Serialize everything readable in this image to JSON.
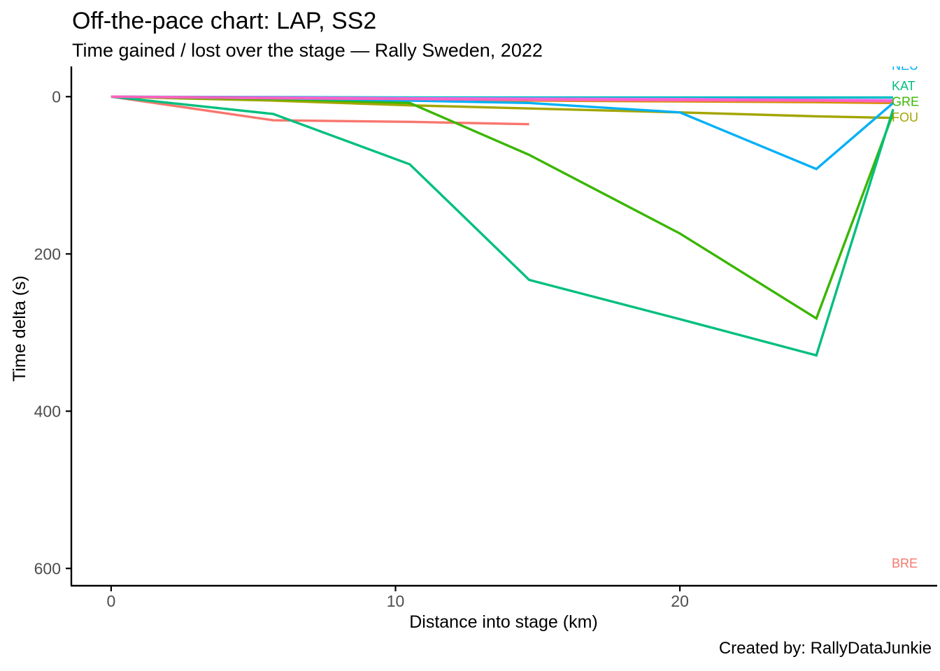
{
  "header": {
    "title": "Off-the-pace chart: LAP, SS2",
    "subtitle": "Time gained / lost over the stage — Rally Sweden, 2022"
  },
  "footer": {
    "credit": "Created by: RallyDataJunkie"
  },
  "chart_data": {
    "type": "line",
    "title": "Off-the-pace chart: LAP, SS2",
    "subtitle": "Time gained / lost over the stage — Rally Sweden, 2022",
    "xlabel": "Distance into stage (km)",
    "ylabel": "Time delta (s)",
    "x_ticks": [
      0,
      10,
      20
    ],
    "y_ticks": [
      0,
      200,
      400,
      600
    ],
    "xlim": [
      -1.4,
      29.0
    ],
    "ylim_seconds": [
      -38.5,
      622
    ],
    "y_inverted": true,
    "grid": false,
    "legend": "end-of-line labels",
    "axis_color": "#000000",
    "tick_text_color": "#4d4d4d",
    "split_distances_km": [
      0,
      5.7,
      10.5,
      14.7,
      20.0,
      24.8,
      27.5
    ],
    "series": [
      {
        "code": "BRE",
        "label": "BRE",
        "color": "#F8766D",
        "points": [
          [
            0,
            0
          ],
          [
            5.7,
            30
          ],
          [
            10.5,
            32
          ],
          [
            14.7,
            35
          ]
        ]
      },
      {
        "code": "",
        "label": "",
        "color": "#D89000",
        "points": [
          [
            0,
            0
          ],
          [
            5.7,
            2
          ],
          [
            10.5,
            4
          ],
          [
            14.7,
            5
          ],
          [
            20,
            6
          ],
          [
            24.8,
            7
          ],
          [
            27.5,
            8
          ]
        ]
      },
      {
        "code": "FOU",
        "label": "FOU",
        "color": "#A3A500",
        "points": [
          [
            0,
            0
          ],
          [
            5.7,
            5
          ],
          [
            10.5,
            11
          ],
          [
            14.7,
            15
          ],
          [
            20,
            20
          ],
          [
            24.8,
            25
          ],
          [
            27.5,
            27
          ]
        ]
      },
      {
        "code": "GRE",
        "label": "GRE",
        "color": "#39B600",
        "points": [
          [
            0,
            0
          ],
          [
            5.7,
            3
          ],
          [
            10.5,
            8
          ],
          [
            14.7,
            74
          ],
          [
            20,
            174
          ],
          [
            24.8,
            282
          ],
          [
            27.5,
            21
          ]
        ]
      },
      {
        "code": "KAT",
        "label": "KAT",
        "color": "#00BF7D",
        "points": [
          [
            0,
            0
          ],
          [
            5.7,
            22
          ],
          [
            10.5,
            86
          ],
          [
            14.7,
            233
          ],
          [
            20,
            283
          ],
          [
            24.8,
            329
          ],
          [
            27.5,
            16
          ]
        ]
      },
      {
        "code": "",
        "label": "",
        "color": "#00BFC4",
        "points": [
          [
            0,
            0
          ],
          [
            5.7,
            0.5
          ],
          [
            10.5,
            1
          ],
          [
            14.7,
            1
          ],
          [
            20,
            1
          ],
          [
            24.8,
            1
          ],
          [
            27.5,
            1
          ]
        ]
      },
      {
        "code": "NEU",
        "label": "NEU",
        "color": "#00B0F6",
        "points": [
          [
            0,
            0
          ],
          [
            5.7,
            2
          ],
          [
            10.5,
            5
          ],
          [
            14.7,
            8
          ],
          [
            20,
            20
          ],
          [
            24.8,
            92
          ],
          [
            27.5,
            8
          ]
        ]
      },
      {
        "code": "",
        "label": "",
        "color": "#E76BF3",
        "points": [
          [
            0,
            0
          ],
          [
            5.7,
            1
          ],
          [
            10.5,
            2
          ],
          [
            14.7,
            2.5
          ],
          [
            20,
            3
          ],
          [
            24.8,
            4
          ],
          [
            27.5,
            4.5
          ]
        ]
      },
      {
        "code": "",
        "label": "",
        "color": "#FF62BC",
        "points": [
          [
            0,
            0
          ],
          [
            5.7,
            2
          ],
          [
            10.5,
            3
          ],
          [
            14.7,
            4
          ],
          [
            20,
            4.5
          ],
          [
            24.8,
            5
          ],
          [
            27.5,
            6
          ]
        ]
      }
    ],
    "end_labels": [
      {
        "code": "NEU",
        "color": "#00B0F6",
        "km": 27.45,
        "delta": -40,
        "clipped_at_panel_top": true
      },
      {
        "code": "KAT",
        "color": "#00BF7D",
        "km": 27.45,
        "delta": -14
      },
      {
        "code": "GRE",
        "color": "#39B600",
        "km": 27.45,
        "delta": 6
      },
      {
        "code": "FOU",
        "color": "#A3A500",
        "km": 27.45,
        "delta": 26
      },
      {
        "code": "BRE",
        "color": "#F8766D",
        "km": 27.45,
        "delta": 593
      }
    ]
  }
}
